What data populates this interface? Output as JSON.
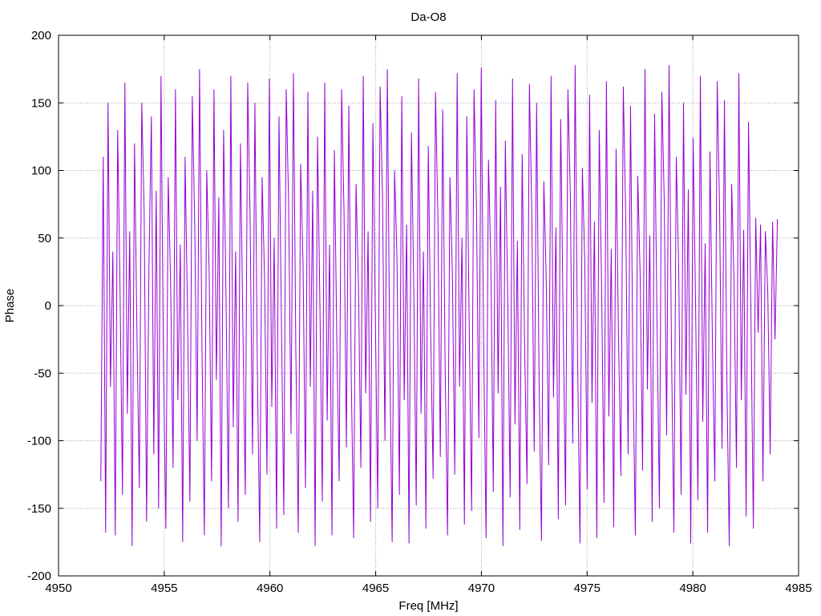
{
  "chart_data": {
    "type": "line",
    "title": "Da-O8",
    "xlabel": "Freq [MHz]",
    "ylabel": "Phase",
    "xlim": [
      4950,
      4985
    ],
    "ylim": [
      -200,
      200
    ],
    "xticks": [
      4950,
      4955,
      4960,
      4965,
      4970,
      4975,
      4980,
      4985
    ],
    "yticks": [
      -200,
      -150,
      -100,
      -50,
      0,
      50,
      100,
      150,
      200
    ],
    "grid": true,
    "legend": "none",
    "series": [
      {
        "color": "#9400d3",
        "x_start": 4952,
        "x_end": 4984,
        "y": [
          -130,
          110,
          -168,
          150,
          -60,
          40,
          -170,
          130,
          10,
          -140,
          165,
          -80,
          55,
          -178,
          120,
          -20,
          -135,
          150,
          70,
          -160,
          30,
          140,
          -110,
          85,
          -150,
          170,
          -40,
          -165,
          95,
          15,
          -120,
          160,
          -70,
          45,
          -175,
          110,
          -5,
          -145,
          155,
          60,
          -100,
          175,
          -30,
          -170,
          100,
          25,
          -130,
          160,
          -55,
          80,
          -178,
          130,
          5,
          -150,
          170,
          -90,
          40,
          -160,
          120,
          -15,
          -140,
          165,
          65,
          -110,
          150,
          -45,
          -175,
          95,
          20,
          -125,
          168,
          -75,
          50,
          -165,
          140,
          -10,
          -155,
          160,
          75,
          -95,
          172,
          -35,
          -168,
          105,
          30,
          -135,
          158,
          -60,
          85,
          -178,
          125,
          0,
          -145,
          165,
          -85,
          45,
          -170,
          115,
          -25,
          -130,
          160,
          70,
          -105,
          148,
          -50,
          -172,
          90,
          15,
          -120,
          170,
          -65,
          55,
          -160,
          135,
          -5,
          -150,
          162,
          80,
          -100,
          175,
          -40,
          -175,
          100,
          35,
          -140,
          155,
          -70,
          60,
          -176,
          128,
          10,
          -148,
          168,
          -80,
          40,
          -165,
          118,
          -20,
          -128,
          158,
          65,
          -112,
          145,
          -45,
          -170,
          95,
          25,
          -125,
          172,
          -60,
          50,
          -162,
          140,
          -15,
          -152,
          160,
          75,
          -98,
          176,
          -30,
          -172,
          108,
          30,
          -138,
          152,
          -65,
          88,
          -178,
          122,
          5,
          -142,
          168,
          -88,
          48,
          -166,
          112,
          -28,
          -132,
          164,
          68,
          -108,
          150,
          -52,
          -174,
          92,
          18,
          -118,
          170,
          -68,
          58,
          -158,
          138,
          -8,
          -148,
          160,
          82,
          -102,
          178,
          -38,
          -176,
          102,
          32,
          -136,
          156,
          -72,
          62,
          -172,
          130,
          12,
          -146,
          166,
          -82,
          42,
          -164,
          116,
          -22,
          -126,
          162,
          66,
          -110,
          148,
          -48,
          -170,
          96,
          22,
          -122,
          175,
          -62,
          52,
          -160,
          142,
          -12,
          -150,
          158,
          78,
          -96,
          178,
          -32,
          -168,
          110,
          28,
          -140,
          150,
          -66,
          86,
          -176,
          124,
          2,
          -144,
          170,
          -86,
          46,
          -168,
          114,
          -26,
          -130,
          166,
          70,
          -106,
          152,
          -54,
          -178,
          90,
          16,
          -120,
          172,
          -70,
          56,
          -156,
          136,
          -6,
          -165,
          65,
          -20,
          60,
          -130,
          55,
          10,
          -110,
          62,
          -25,
          64
        ]
      }
    ]
  }
}
